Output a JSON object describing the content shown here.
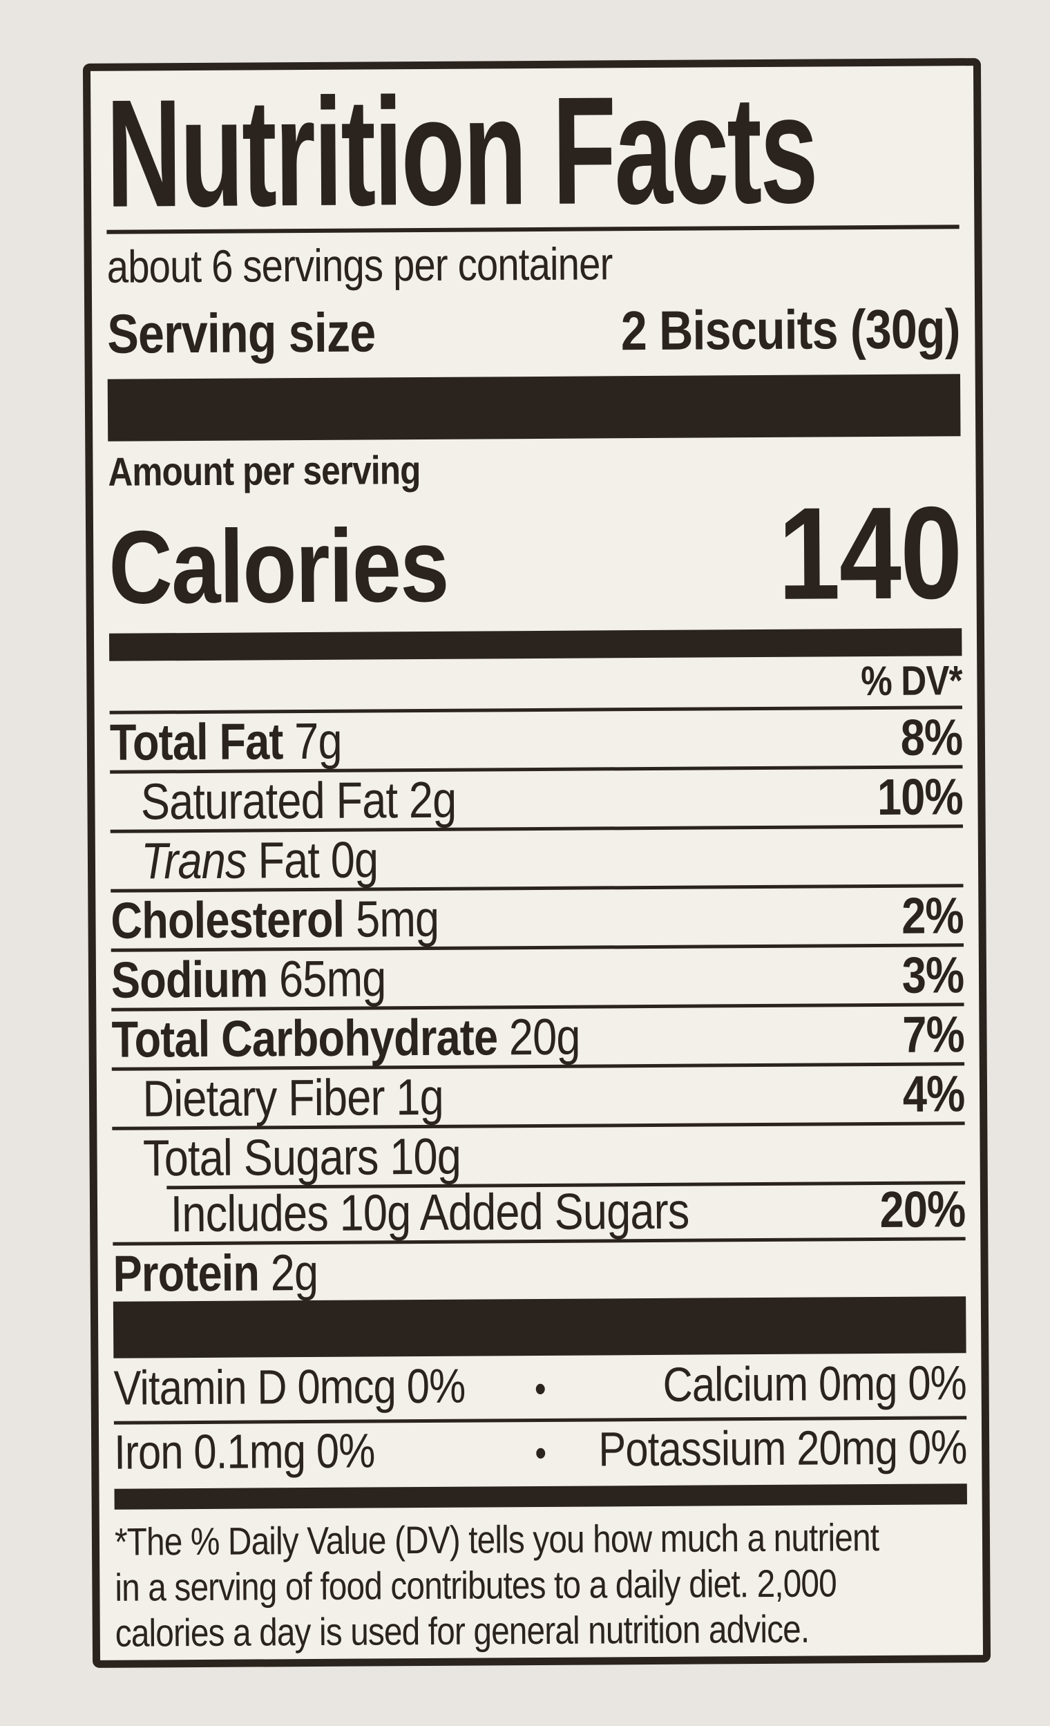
{
  "page": {
    "background": "#e9e6e1"
  },
  "label": {
    "ink_color": "#2a231e",
    "background": "#f2f0e9",
    "title": "Nutrition Facts",
    "servings_per_container": "about 6 servings per container",
    "serving_size": {
      "label": "Serving size",
      "value": "2 Biscuits (30g)"
    },
    "calories": {
      "amount_per_serving": "Amount per serving",
      "label": "Calories",
      "value": "140"
    },
    "daily_value_header": "% DV*",
    "nutrients": [
      {
        "bold_label": "Total Fat",
        "italic_label": "",
        "label": "",
        "value": "7g",
        "dv": "8%"
      },
      {
        "bold_label": "",
        "italic_label": "",
        "label": "Saturated Fat",
        "value": "2g",
        "dv": "10%"
      },
      {
        "bold_label": "",
        "italic_label": "Trans",
        "label": "Fat",
        "value": "0g",
        "dv": ""
      },
      {
        "bold_label": "Cholesterol",
        "italic_label": "",
        "label": "",
        "value": "5mg",
        "dv": "2%"
      },
      {
        "bold_label": "Sodium",
        "italic_label": "",
        "label": "",
        "value": "65mg",
        "dv": "3%"
      },
      {
        "bold_label": "Total Carbohydrate",
        "italic_label": "",
        "label": "",
        "value": "20g",
        "dv": "7%"
      },
      {
        "bold_label": "",
        "italic_label": "",
        "label": "Dietary Fiber",
        "value": "1g",
        "dv": "4%"
      },
      {
        "bold_label": "",
        "italic_label": "",
        "label": "Total Sugars",
        "value": "10g",
        "dv": ""
      },
      {
        "bold_label": "",
        "italic_label": "",
        "label": "Includes 10g Added Sugars",
        "value": "",
        "dv": "20%"
      },
      {
        "bold_label": "Protein",
        "italic_label": "",
        "label": "",
        "value": "2g",
        "dv": ""
      }
    ],
    "micronutrients": [
      {
        "left": "Vitamin D 0mcg 0%",
        "bullet": "•",
        "right": "Calcium 0mg 0%"
      },
      {
        "left": "Iron 0.1mg 0%",
        "bullet": "•",
        "right": "Potassium 20mg 0%"
      }
    ],
    "footnote_lines": [
      "*The % Daily Value (DV) tells you how much a nutrient",
      "in a serving of food contributes to a daily diet. 2,000",
      "calories a day is used for general nutrition advice."
    ]
  }
}
